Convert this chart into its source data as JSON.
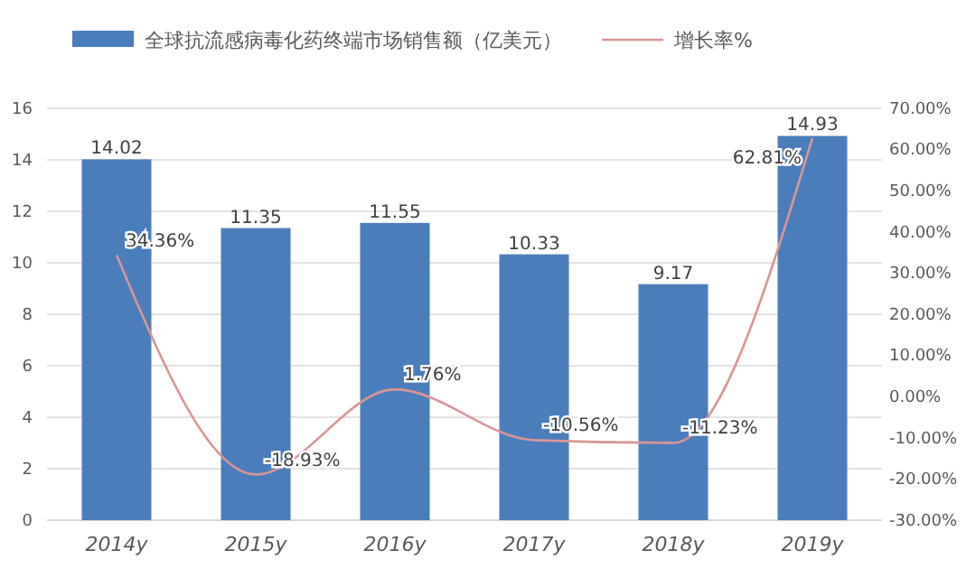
{
  "chart_data": {
    "type": "bar",
    "categories": [
      "2014y",
      "2015y",
      "2016y",
      "2017y",
      "2018y",
      "2019y"
    ],
    "series": [
      {
        "name": "全球抗流感病毒化药终端市场销售额（亿美元）",
        "color": "#4a7ebb",
        "values": [
          14.02,
          11.35,
          11.55,
          10.33,
          9.17,
          14.93
        ],
        "value_labels": [
          "14.02",
          "11.35",
          "11.55",
          "10.33",
          "9.17",
          "14.93"
        ]
      },
      {
        "name": "增长率%",
        "type": "line",
        "axis": "y2",
        "color": "#d99694",
        "values": [
          34.36,
          -18.93,
          1.76,
          -10.56,
          -11.23,
          62.81
        ],
        "value_labels": [
          "34.36%",
          "-18.93%",
          "1.76%",
          "-10.56%",
          "-11.23%",
          "62.81%"
        ]
      }
    ],
    "ylim": [
      0,
      16
    ],
    "yticks": [
      0,
      2,
      4,
      6,
      8,
      10,
      12,
      14,
      16
    ],
    "y2lim": [
      -30,
      70
    ],
    "y2ticks": [
      {
        "value": -30,
        "label": "-30.00%"
      },
      {
        "value": -20,
        "label": "-20.00%"
      },
      {
        "value": -10,
        "label": "-10.00%"
      },
      {
        "value": 0,
        "label": "0.00%"
      },
      {
        "value": 10,
        "label": "10.00%"
      },
      {
        "value": 20,
        "label": "20.00%"
      },
      {
        "value": 30,
        "label": "30.00%"
      },
      {
        "value": 40,
        "label": "40.00%"
      },
      {
        "value": 50,
        "label": "50.00%"
      },
      {
        "value": 60,
        "label": "60.00%"
      },
      {
        "value": 70,
        "label": "70.00%"
      }
    ],
    "grid": "y",
    "legend": "top",
    "marker": "none",
    "line_style": "solid"
  }
}
